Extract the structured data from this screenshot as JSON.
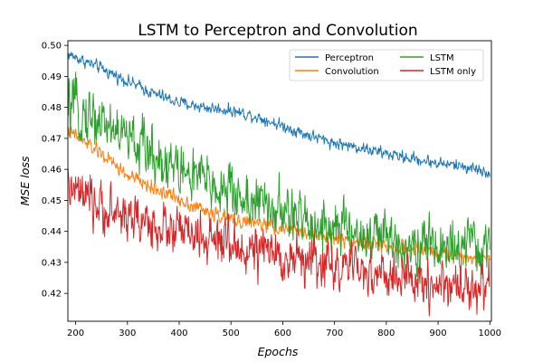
{
  "chart_data": {
    "type": "line",
    "title": "LSTM to Perceptron and Convolution",
    "xlabel": "Epochs",
    "ylabel": "MSE loss",
    "xlim": [
      185,
      1003
    ],
    "ylim": [
      0.411,
      0.5015
    ],
    "xticks": [
      200,
      300,
      400,
      500,
      600,
      700,
      800,
      900,
      1000
    ],
    "yticks": [
      0.42,
      0.43,
      0.44,
      0.45,
      0.46,
      0.47,
      0.48,
      0.49,
      0.5
    ],
    "ytick_labels": [
      "0.42",
      "0.43",
      "0.44",
      "0.45",
      "0.46",
      "0.47",
      "0.48",
      "0.49",
      "0.50"
    ],
    "legend": {
      "placement": "top-right",
      "columns": 2
    },
    "x_range": [
      185,
      1000
    ],
    "series": [
      {
        "name": "Perceptron",
        "color": "#1f77b4",
        "points": [
          [
            185,
            0.4972
          ],
          [
            250,
            0.4925
          ],
          [
            300,
            0.4885
          ],
          [
            350,
            0.4845
          ],
          [
            400,
            0.4815
          ],
          [
            450,
            0.48
          ],
          [
            500,
            0.479
          ],
          [
            550,
            0.477
          ],
          [
            600,
            0.474
          ],
          [
            650,
            0.471
          ],
          [
            700,
            0.4685
          ],
          [
            750,
            0.467
          ],
          [
            800,
            0.465
          ],
          [
            850,
            0.4635
          ],
          [
            900,
            0.462
          ],
          [
            950,
            0.461
          ],
          [
            1000,
            0.459
          ]
        ],
        "noise": 0.0009
      },
      {
        "name": "Convolution",
        "color": "#ff7f0e",
        "points": [
          [
            185,
            0.4725
          ],
          [
            250,
            0.465
          ],
          [
            300,
            0.458
          ],
          [
            350,
            0.454
          ],
          [
            400,
            0.4505
          ],
          [
            450,
            0.4465
          ],
          [
            500,
            0.444
          ],
          [
            550,
            0.4425
          ],
          [
            600,
            0.441
          ],
          [
            650,
            0.4395
          ],
          [
            700,
            0.438
          ],
          [
            750,
            0.4365
          ],
          [
            800,
            0.4355
          ],
          [
            850,
            0.434
          ],
          [
            900,
            0.433
          ],
          [
            950,
            0.432
          ],
          [
            1000,
            0.4315
          ]
        ],
        "noise": 0.0011
      },
      {
        "name": "LSTM",
        "color": "#2ca02c",
        "points": [
          [
            185,
            0.48
          ],
          [
            250,
            0.476
          ],
          [
            300,
            0.47
          ],
          [
            350,
            0.465
          ],
          [
            400,
            0.46
          ],
          [
            450,
            0.456
          ],
          [
            500,
            0.4525
          ],
          [
            550,
            0.449
          ],
          [
            600,
            0.446
          ],
          [
            650,
            0.443
          ],
          [
            700,
            0.441
          ],
          [
            750,
            0.439
          ],
          [
            800,
            0.4375
          ],
          [
            850,
            0.436
          ],
          [
            900,
            0.435
          ],
          [
            950,
            0.4345
          ],
          [
            1000,
            0.434
          ]
        ],
        "noise": 0.0042
      },
      {
        "name": "LSTM only",
        "color": "#d62728",
        "points": [
          [
            185,
            0.454
          ],
          [
            250,
            0.447
          ],
          [
            300,
            0.445
          ],
          [
            350,
            0.442
          ],
          [
            400,
            0.44
          ],
          [
            450,
            0.437
          ],
          [
            500,
            0.435
          ],
          [
            550,
            0.4335
          ],
          [
            600,
            0.432
          ],
          [
            650,
            0.4305
          ],
          [
            700,
            0.429
          ],
          [
            750,
            0.427
          ],
          [
            800,
            0.4255
          ],
          [
            850,
            0.424
          ],
          [
            900,
            0.423
          ],
          [
            950,
            0.4225
          ],
          [
            1000,
            0.422
          ]
        ],
        "noise": 0.0036
      }
    ]
  }
}
